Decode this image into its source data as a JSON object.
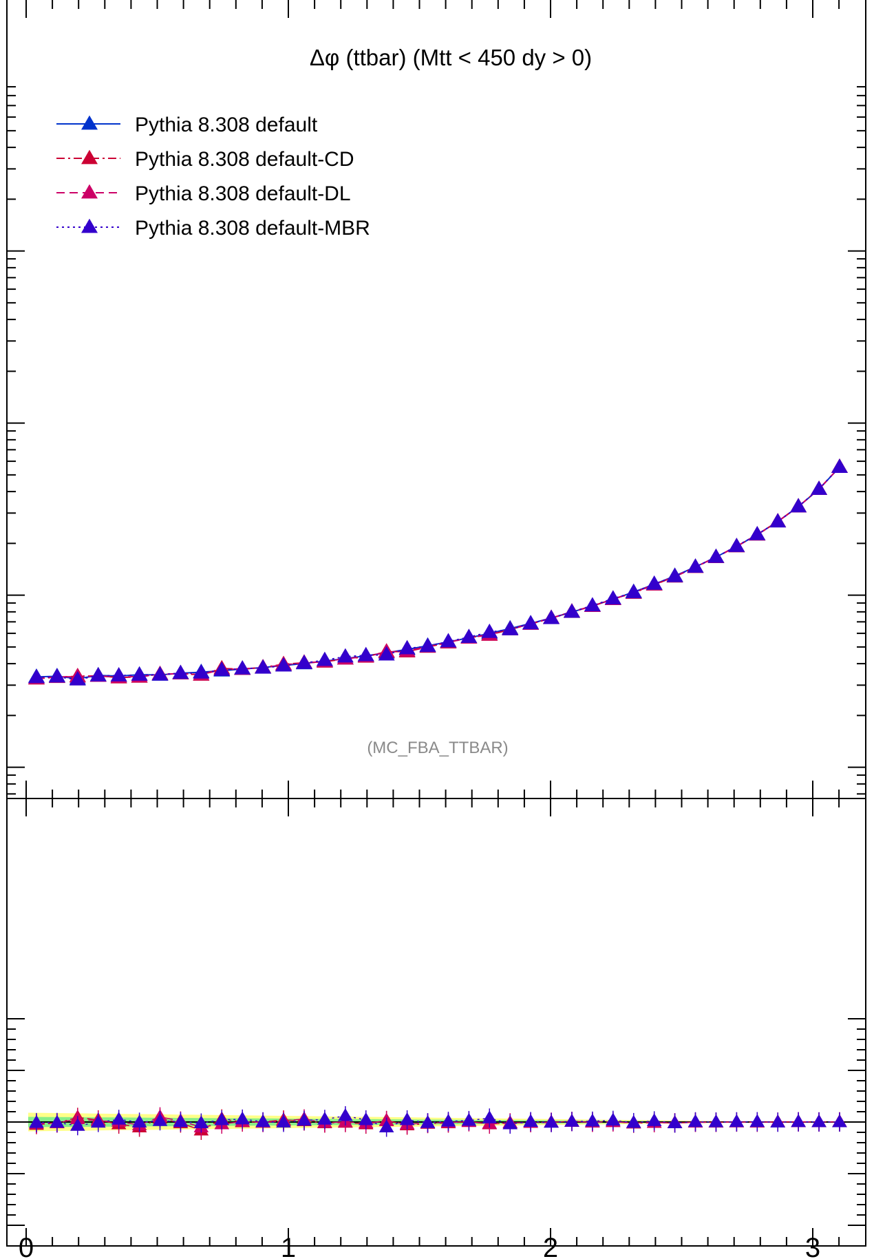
{
  "chart_data": [
    {
      "type": "line",
      "title": "Δφ (ttbar) (Mtt < 450 dy > 0)",
      "watermark": "(MC_FBA_TTBAR)",
      "scale": "log-y",
      "xlim": [
        -0.02,
        3.2
      ],
      "ylim_decades": 5,
      "legend_position": "top-left",
      "x": [
        0.0393,
        0.1178,
        0.1963,
        0.2749,
        0.3534,
        0.432,
        0.5105,
        0.589,
        0.6676,
        0.7461,
        0.8247,
        0.9032,
        0.9817,
        1.0603,
        1.1388,
        1.2174,
        1.2959,
        1.3744,
        1.453,
        1.5315,
        1.6101,
        1.6886,
        1.7671,
        1.8457,
        1.9242,
        2.0028,
        2.0813,
        2.1598,
        2.2384,
        2.3169,
        2.3955,
        2.474,
        2.5525,
        2.6311,
        2.7096,
        2.7882,
        2.8667,
        2.9452,
        3.0238,
        3.1023
      ],
      "series": [
        {
          "name": "Pythia 8.308 default",
          "color": "#0033cc",
          "dash": "solid",
          "marker": "triangle",
          "values": [
            0.0335,
            0.0338,
            0.0327,
            0.0342,
            0.0339,
            0.0345,
            0.0344,
            0.0352,
            0.0357,
            0.0364,
            0.0372,
            0.038,
            0.039,
            0.0401,
            0.0414,
            0.0428,
            0.0444,
            0.0463,
            0.0484,
            0.0508,
            0.0535,
            0.0565,
            0.06,
            0.064,
            0.0685,
            0.0737,
            0.0797,
            0.0866,
            0.0947,
            0.1043,
            0.1157,
            0.1294,
            0.146,
            0.1665,
            0.1921,
            0.2249,
            0.268,
            0.327,
            0.413,
            0.555
          ]
        },
        {
          "name": "Pythia 8.308 default-CD",
          "color": "#cc0033",
          "dash": "dashdot",
          "marker": "triangle",
          "values": [
            0.0327,
            0.0334,
            0.0338,
            0.034,
            0.0332,
            0.0335,
            0.0348,
            0.035,
            0.0344,
            0.0375,
            0.0372,
            0.038,
            0.0397,
            0.0405,
            0.041,
            0.0427,
            0.0438,
            0.047,
            0.047,
            0.05,
            0.053,
            0.0567,
            0.0587,
            0.0632,
            0.068,
            0.0735,
            0.0802,
            0.0864,
            0.095,
            0.103,
            0.115,
            0.128,
            0.1455,
            0.166,
            0.192,
            0.2245,
            0.268,
            0.3275,
            0.4135,
            0.556
          ]
        },
        {
          "name": "Pythia 8.308 default-DL",
          "color": "#cc0066",
          "dash": "dashed",
          "marker": "triangle",
          "values": [
            0.0329,
            0.0335,
            0.0336,
            0.0339,
            0.0334,
            0.0337,
            0.0346,
            0.0351,
            0.0346,
            0.0369,
            0.0373,
            0.0379,
            0.0394,
            0.0404,
            0.0412,
            0.0427,
            0.044,
            0.0467,
            0.0474,
            0.0503,
            0.0532,
            0.0565,
            0.059,
            0.0633,
            0.0681,
            0.0736,
            0.0799,
            0.0864,
            0.0948,
            0.1035,
            0.1152,
            0.1285,
            0.1457,
            0.1662,
            0.1921,
            0.2247,
            0.2679,
            0.3272,
            0.4132,
            0.5555
          ]
        },
        {
          "name": "Pythia 8.308 default-MBR",
          "color": "#3300cc",
          "dash": "dotted",
          "marker": "triangle",
          "values": [
            0.0333,
            0.0336,
            0.0323,
            0.0341,
            0.0341,
            0.0344,
            0.0345,
            0.0352,
            0.0354,
            0.0367,
            0.0374,
            0.0378,
            0.0389,
            0.0403,
            0.0419,
            0.0439,
            0.0447,
            0.0451,
            0.049,
            0.0505,
            0.0538,
            0.057,
            0.061,
            0.0632,
            0.0684,
            0.0734,
            0.08,
            0.087,
            0.0955,
            0.1037,
            0.1162,
            0.1285,
            0.146,
            0.1665,
            0.1925,
            0.2255,
            0.2675,
            0.3275,
            0.4135,
            0.555
          ]
        }
      ]
    },
    {
      "type": "line",
      "title": "",
      "xlabel": "",
      "ylim": [
        -1.5,
        1.5
      ],
      "xticks": [
        "0",
        "1",
        "2",
        "3"
      ],
      "reference": 0,
      "band_color_outer": "#ffff88",
      "band_color_inner": "#88ee88",
      "band_outer_start": 0.09,
      "band_inner_start": 0.05,
      "series": [
        {
          "name": "Pythia 8.308 default-CD",
          "values": [
            -0.025,
            -0.01,
            0.045,
            0.02,
            -0.02,
            -0.05,
            0.035,
            -0.01,
            -0.08,
            0.03,
            0.0,
            0.0,
            0.02,
            0.01,
            -0.01,
            -0.005,
            -0.02,
            0.015,
            -0.03,
            -0.015,
            -0.01,
            0.005,
            -0.02,
            -0.01,
            -0.005,
            -0.003,
            0.006,
            -0.002,
            0.003,
            -0.012,
            -0.006,
            -0.01,
            -0.003,
            -0.003,
            -0.001,
            -0.002,
            0.0,
            0.002,
            0.001,
            0.002
          ]
        },
        {
          "name": "Pythia 8.308 default-DL",
          "values": [
            -0.015,
            -0.01,
            0.03,
            0.01,
            0.005,
            -0.03,
            0.05,
            0.01,
            -0.05,
            -0.02,
            0.005,
            -0.005,
            0.01,
            0.03,
            -0.005,
            0.0,
            -0.01,
            0.01,
            -0.02,
            -0.01,
            -0.005,
            0.002,
            -0.015,
            -0.008,
            -0.006,
            -0.002,
            0.004,
            -0.003,
            0.001,
            -0.008,
            -0.005,
            -0.007,
            -0.002,
            -0.002,
            0.0,
            -0.001,
            0.0,
            0.001,
            0.0,
            0.001
          ]
        },
        {
          "name": "Pythia 8.308 default-MBR",
          "values": [
            -0.006,
            -0.005,
            -0.035,
            -0.004,
            0.025,
            -0.002,
            0.012,
            0.002,
            -0.01,
            0.02,
            0.028,
            0.002,
            -0.003,
            0.015,
            0.025,
            0.06,
            0.02,
            -0.05,
            0.02,
            -0.007,
            0.006,
            0.014,
            0.038,
            -0.02,
            0.004,
            -0.005,
            0.005,
            0.008,
            0.016,
            -0.006,
            0.011,
            -0.01,
            0.002,
            0.0,
            0.002,
            0.003,
            -0.002,
            0.002,
            0.001,
            0.0
          ]
        }
      ]
    }
  ]
}
